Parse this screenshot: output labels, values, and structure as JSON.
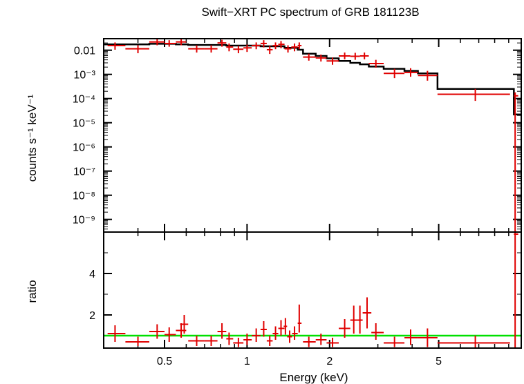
{
  "chart_data": {
    "type": "scatter",
    "title": "Swift−XRT PC spectrum of GRB 181123B",
    "xlabel": "Energy (keV)",
    "xscale": "log",
    "xlim": [
      0.3,
      10
    ],
    "xticks": [
      "0.5",
      "1",
      "2",
      "5"
    ],
    "colors": {
      "data": "#e00000",
      "model": "#000000",
      "ratio_line": "#00e000"
    },
    "top_panel": {
      "ylabel": "counts s⁻¹ keV⁻¹",
      "yscale": "log",
      "ylim": [
        3e-10,
        0.03
      ],
      "yticks": [
        "0.01",
        "10⁻³",
        "10⁻⁴",
        "10⁻⁵",
        "10⁻⁶",
        "10⁻⁷",
        "10⁻⁸",
        "10⁻⁹"
      ],
      "data": [
        {
          "x": 0.33,
          "xlo": 0.31,
          "xhi": 0.36,
          "y": 0.0155,
          "ylo": 0.0105,
          "yhi": 0.021
        },
        {
          "x": 0.4,
          "xlo": 0.36,
          "xhi": 0.44,
          "y": 0.0115,
          "ylo": 0.0075,
          "yhi": 0.016
        },
        {
          "x": 0.47,
          "xlo": 0.44,
          "xhi": 0.5,
          "y": 0.022,
          "ylo": 0.016,
          "yhi": 0.03
        },
        {
          "x": 0.52,
          "xlo": 0.5,
          "xhi": 0.55,
          "y": 0.019,
          "ylo": 0.014,
          "yhi": 0.026
        },
        {
          "x": 0.575,
          "xlo": 0.55,
          "xhi": 0.6,
          "y": 0.022,
          "ylo": 0.016,
          "yhi": 0.029
        },
        {
          "x": 0.655,
          "xlo": 0.61,
          "xhi": 0.7,
          "y": 0.0115,
          "ylo": 0.008,
          "yhi": 0.016
        },
        {
          "x": 0.74,
          "xlo": 0.7,
          "xhi": 0.78,
          "y": 0.0115,
          "ylo": 0.008,
          "yhi": 0.016
        },
        {
          "x": 0.81,
          "xlo": 0.78,
          "xhi": 0.84,
          "y": 0.02,
          "ylo": 0.014,
          "yhi": 0.027
        },
        {
          "x": 0.86,
          "xlo": 0.84,
          "xhi": 0.89,
          "y": 0.0135,
          "ylo": 0.009,
          "yhi": 0.019
        },
        {
          "x": 0.93,
          "xlo": 0.89,
          "xhi": 0.97,
          "y": 0.011,
          "ylo": 0.0075,
          "yhi": 0.015
        },
        {
          "x": 1.0,
          "xlo": 0.97,
          "xhi": 1.04,
          "y": 0.0125,
          "ylo": 0.0085,
          "yhi": 0.017
        },
        {
          "x": 1.08,
          "xlo": 1.04,
          "xhi": 1.12,
          "y": 0.0155,
          "ylo": 0.011,
          "yhi": 0.021
        },
        {
          "x": 1.15,
          "xlo": 1.12,
          "xhi": 1.18,
          "y": 0.019,
          "ylo": 0.013,
          "yhi": 0.026
        },
        {
          "x": 1.21,
          "xlo": 1.18,
          "xhi": 1.24,
          "y": 0.0105,
          "ylo": 0.007,
          "yhi": 0.015
        },
        {
          "x": 1.27,
          "xlo": 1.24,
          "xhi": 1.3,
          "y": 0.0155,
          "ylo": 0.011,
          "yhi": 0.021
        },
        {
          "x": 1.33,
          "xlo": 1.3,
          "xhi": 1.37,
          "y": 0.0175,
          "ylo": 0.012,
          "yhi": 0.024
        },
        {
          "x": 1.41,
          "xlo": 1.37,
          "xhi": 1.45,
          "y": 0.0115,
          "ylo": 0.008,
          "yhi": 0.016
        },
        {
          "x": 1.49,
          "xlo": 1.45,
          "xhi": 1.53,
          "y": 0.0135,
          "ylo": 0.009,
          "yhi": 0.019
        },
        {
          "x": 1.55,
          "xlo": 1.53,
          "xhi": 1.58,
          "y": 0.0155,
          "ylo": 0.011,
          "yhi": 0.021
        },
        {
          "x": 1.68,
          "xlo": 1.6,
          "xhi": 1.78,
          "y": 0.0052,
          "ylo": 0.0037,
          "yhi": 0.0072
        },
        {
          "x": 1.86,
          "xlo": 1.78,
          "xhi": 1.95,
          "y": 0.0048,
          "ylo": 0.0034,
          "yhi": 0.0066
        },
        {
          "x": 2.05,
          "xlo": 1.95,
          "xhi": 2.16,
          "y": 0.0036,
          "ylo": 0.0025,
          "yhi": 0.005
        },
        {
          "x": 2.27,
          "xlo": 2.16,
          "xhi": 2.38,
          "y": 0.0058,
          "ylo": 0.0042,
          "yhi": 0.008
        },
        {
          "x": 2.48,
          "xlo": 2.38,
          "xhi": 2.58,
          "y": 0.0056,
          "ylo": 0.004,
          "yhi": 0.0078
        },
        {
          "x": 2.68,
          "xlo": 2.58,
          "xhi": 2.78,
          "y": 0.0058,
          "ylo": 0.0042,
          "yhi": 0.008
        },
        {
          "x": 2.95,
          "xlo": 2.78,
          "xhi": 3.15,
          "y": 0.0028,
          "ylo": 0.0019,
          "yhi": 0.004
        },
        {
          "x": 3.45,
          "xlo": 3.15,
          "xhi": 3.75,
          "y": 0.0011,
          "ylo": 0.0007,
          "yhi": 0.0017
        },
        {
          "x": 3.95,
          "xlo": 3.75,
          "xhi": 4.2,
          "y": 0.0012,
          "ylo": 0.0008,
          "yhi": 0.0018
        },
        {
          "x": 4.55,
          "xlo": 4.2,
          "xhi": 4.95,
          "y": 0.0009,
          "ylo": 0.00055,
          "yhi": 0.0014
        },
        {
          "x": 6.8,
          "xlo": 4.95,
          "xhi": 9.1,
          "y": 0.00015,
          "ylo": 8e-05,
          "yhi": 0.00025
        },
        {
          "x": 9.5,
          "xlo": 9.4,
          "xhi": 9.75,
          "y": 0.00013,
          "ylo": 3e-10,
          "yhi": 0.00018
        }
      ],
      "model": [
        {
          "x1": 0.3,
          "x2": 0.44,
          "y": 0.0175
        },
        {
          "x1": 0.44,
          "x2": 0.55,
          "y": 0.0185
        },
        {
          "x1": 0.55,
          "x2": 0.61,
          "y": 0.0175
        },
        {
          "x1": 0.61,
          "x2": 0.84,
          "y": 0.0165
        },
        {
          "x1": 0.84,
          "x2": 1.12,
          "y": 0.0155
        },
        {
          "x1": 1.12,
          "x2": 1.37,
          "y": 0.0145
        },
        {
          "x1": 1.37,
          "x2": 1.53,
          "y": 0.0125
        },
        {
          "x1": 1.53,
          "x2": 1.6,
          "y": 0.0105
        },
        {
          "x1": 1.6,
          "x2": 1.78,
          "y": 0.0072
        },
        {
          "x1": 1.78,
          "x2": 1.95,
          "y": 0.0058
        },
        {
          "x1": 1.95,
          "x2": 2.16,
          "y": 0.0046
        },
        {
          "x1": 2.16,
          "x2": 2.38,
          "y": 0.0036
        },
        {
          "x1": 2.38,
          "x2": 2.58,
          "y": 0.003
        },
        {
          "x1": 2.58,
          "x2": 2.78,
          "y": 0.0026
        },
        {
          "x1": 2.78,
          "x2": 3.15,
          "y": 0.0021
        },
        {
          "x1": 3.15,
          "x2": 3.75,
          "y": 0.0017
        },
        {
          "x1": 3.75,
          "x2": 4.2,
          "y": 0.0014
        },
        {
          "x1": 4.2,
          "x2": 4.95,
          "y": 0.0011
        },
        {
          "x1": 4.95,
          "x2": 9.4,
          "y": 0.00025
        },
        {
          "x1": 9.4,
          "x2": 10,
          "y": 2.2e-05
        }
      ]
    },
    "bottom_panel": {
      "ylabel": "ratio",
      "yscale": "linear",
      "ylim": [
        0.4,
        6.0
      ],
      "yticks": [
        2,
        4
      ],
      "reference_line": 1,
      "data": [
        {
          "x": 0.33,
          "xlo": 0.31,
          "xhi": 0.36,
          "y": 1.1,
          "ylo": 0.7,
          "yhi": 1.5
        },
        {
          "x": 0.4,
          "xlo": 0.36,
          "xhi": 0.44,
          "y": 0.7,
          "ylo": 0.5,
          "yhi": 0.95
        },
        {
          "x": 0.47,
          "xlo": 0.44,
          "xhi": 0.5,
          "y": 1.2,
          "ylo": 0.85,
          "yhi": 1.55
        },
        {
          "x": 0.52,
          "xlo": 0.5,
          "xhi": 0.55,
          "y": 1.05,
          "ylo": 0.7,
          "yhi": 1.4
        },
        {
          "x": 0.575,
          "xlo": 0.55,
          "xhi": 0.6,
          "y": 1.25,
          "ylo": 0.9,
          "yhi": 1.6
        },
        {
          "x": 0.59,
          "xlo": 0.57,
          "xhi": 0.61,
          "y": 1.55,
          "ylo": 1.1,
          "yhi": 2.0
        },
        {
          "x": 0.655,
          "xlo": 0.61,
          "xhi": 0.7,
          "y": 0.75,
          "ylo": 0.5,
          "yhi": 1.0
        },
        {
          "x": 0.74,
          "xlo": 0.7,
          "xhi": 0.78,
          "y": 0.75,
          "ylo": 0.5,
          "yhi": 1.0
        },
        {
          "x": 0.81,
          "xlo": 0.78,
          "xhi": 0.84,
          "y": 1.2,
          "ylo": 0.85,
          "yhi": 1.6
        },
        {
          "x": 0.86,
          "xlo": 0.84,
          "xhi": 0.89,
          "y": 0.85,
          "ylo": 0.55,
          "yhi": 1.15
        },
        {
          "x": 0.93,
          "xlo": 0.89,
          "xhi": 0.97,
          "y": 0.65,
          "ylo": 0.45,
          "yhi": 0.9
        },
        {
          "x": 1.0,
          "xlo": 0.97,
          "xhi": 1.04,
          "y": 0.8,
          "ylo": 0.55,
          "yhi": 1.1
        },
        {
          "x": 1.08,
          "xlo": 1.04,
          "xhi": 1.12,
          "y": 1.0,
          "ylo": 0.7,
          "yhi": 1.35
        },
        {
          "x": 1.15,
          "xlo": 1.12,
          "xhi": 1.18,
          "y": 1.3,
          "ylo": 0.95,
          "yhi": 1.7
        },
        {
          "x": 1.21,
          "xlo": 1.18,
          "xhi": 1.24,
          "y": 0.75,
          "ylo": 0.5,
          "yhi": 1.0
        },
        {
          "x": 1.27,
          "xlo": 1.24,
          "xhi": 1.3,
          "y": 1.1,
          "ylo": 0.8,
          "yhi": 1.45
        },
        {
          "x": 1.33,
          "xlo": 1.3,
          "xhi": 1.37,
          "y": 1.35,
          "ylo": 1.0,
          "yhi": 1.75
        },
        {
          "x": 1.38,
          "xlo": 1.36,
          "xhi": 1.4,
          "y": 1.45,
          "ylo": 1.05,
          "yhi": 1.85
        },
        {
          "x": 1.43,
          "xlo": 1.4,
          "xhi": 1.46,
          "y": 0.95,
          "ylo": 0.65,
          "yhi": 1.25
        },
        {
          "x": 1.49,
          "xlo": 1.46,
          "xhi": 1.53,
          "y": 1.1,
          "ylo": 0.8,
          "yhi": 1.45
        },
        {
          "x": 1.55,
          "xlo": 1.53,
          "xhi": 1.58,
          "y": 1.6,
          "ylo": 1.15,
          "yhi": 2.5
        },
        {
          "x": 1.68,
          "xlo": 1.6,
          "xhi": 1.78,
          "y": 0.7,
          "ylo": 0.45,
          "yhi": 0.95
        },
        {
          "x": 1.86,
          "xlo": 1.78,
          "xhi": 1.95,
          "y": 0.8,
          "ylo": 0.55,
          "yhi": 1.1
        },
        {
          "x": 2.05,
          "xlo": 1.95,
          "xhi": 2.16,
          "y": 0.65,
          "ylo": 0.45,
          "yhi": 0.9
        },
        {
          "x": 2.27,
          "xlo": 2.16,
          "xhi": 2.38,
          "y": 1.35,
          "ylo": 0.9,
          "yhi": 1.8
        },
        {
          "x": 2.45,
          "xlo": 2.38,
          "xhi": 2.52,
          "y": 1.75,
          "ylo": 1.1,
          "yhi": 2.45
        },
        {
          "x": 2.58,
          "xlo": 2.52,
          "xhi": 2.64,
          "y": 1.75,
          "ylo": 1.1,
          "yhi": 2.45
        },
        {
          "x": 2.74,
          "xlo": 2.64,
          "xhi": 2.84,
          "y": 2.1,
          "ylo": 1.35,
          "yhi": 2.85
        },
        {
          "x": 2.95,
          "xlo": 2.84,
          "xhi": 3.15,
          "y": 1.15,
          "ylo": 0.8,
          "yhi": 1.6
        },
        {
          "x": 3.45,
          "xlo": 3.15,
          "xhi": 3.75,
          "y": 0.65,
          "ylo": 0.45,
          "yhi": 0.95
        },
        {
          "x": 3.95,
          "xlo": 3.75,
          "xhi": 4.2,
          "y": 0.9,
          "ylo": 0.55,
          "yhi": 1.3
        },
        {
          "x": 4.55,
          "xlo": 4.2,
          "xhi": 4.95,
          "y": 0.9,
          "ylo": 0.45,
          "yhi": 1.35
        },
        {
          "x": 6.8,
          "xlo": 4.95,
          "xhi": 9.1,
          "y": 0.65,
          "ylo": 0.4,
          "yhi": 1.0
        },
        {
          "x": 9.5,
          "xlo": 9.4,
          "xhi": 9.75,
          "y": 5.9,
          "ylo": 0.4,
          "yhi": 6.0
        }
      ]
    }
  }
}
